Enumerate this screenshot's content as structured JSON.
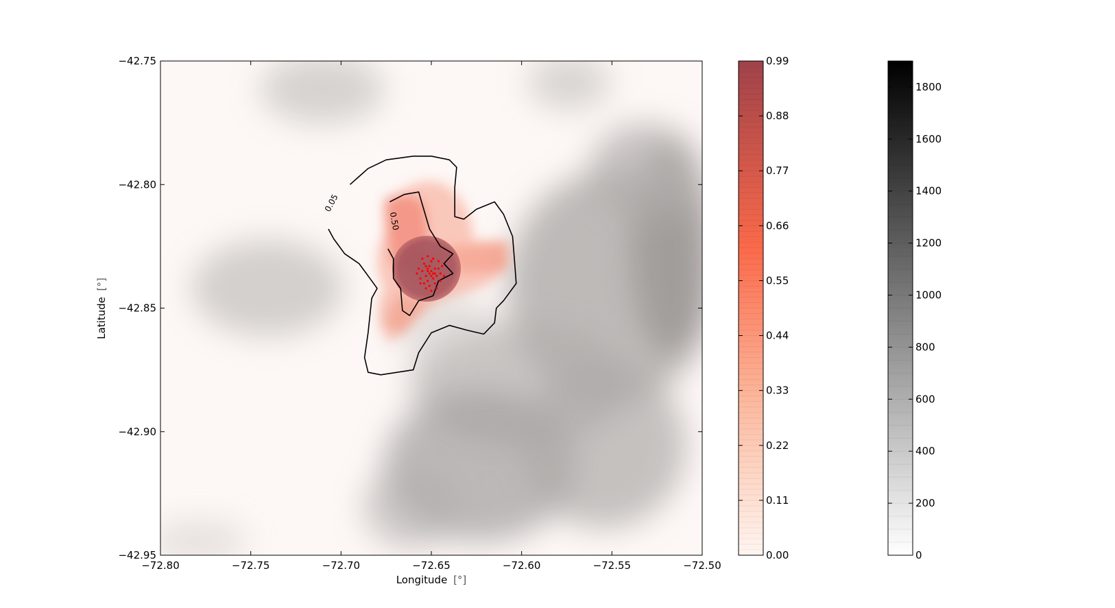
{
  "chart_data": {
    "type": "heatmap",
    "title": "",
    "xlabel": "Longitude",
    "xlabel_unit": "[°]",
    "ylabel": "Latitude",
    "ylabel_unit": "[°]",
    "xlim": [
      -72.8,
      -72.5
    ],
    "ylim": [
      -42.95,
      -42.75
    ],
    "x_ticks": [
      {
        "value": -72.8,
        "label": "−72.80"
      },
      {
        "value": -72.75,
        "label": "−72.75"
      },
      {
        "value": -72.7,
        "label": "−72.70"
      },
      {
        "value": -72.65,
        "label": "−72.65"
      },
      {
        "value": -72.6,
        "label": "−72.60"
      },
      {
        "value": -72.55,
        "label": "−72.55"
      },
      {
        "value": -72.5,
        "label": "−72.50"
      }
    ],
    "y_ticks": [
      {
        "value": -42.75,
        "label": "−42.75"
      },
      {
        "value": -42.8,
        "label": "−42.80"
      },
      {
        "value": -42.85,
        "label": "−42.85"
      },
      {
        "value": -42.9,
        "label": "−42.90"
      },
      {
        "value": -42.95,
        "label": "−42.95"
      }
    ],
    "probability_colorbar": {
      "range": [
        0,
        0.99
      ],
      "colormap": [
        "#fff5f0",
        "#fcbba1",
        "#fb6a4a",
        "#a0424a"
      ],
      "ticks": [
        {
          "value": 0.0,
          "label": "0.00"
        },
        {
          "value": 0.11,
          "label": "0.11"
        },
        {
          "value": 0.22,
          "label": "0.22"
        },
        {
          "value": 0.33,
          "label": "0.33"
        },
        {
          "value": 0.44,
          "label": "0.44"
        },
        {
          "value": 0.55,
          "label": "0.55"
        },
        {
          "value": 0.66,
          "label": "0.66"
        },
        {
          "value": 0.77,
          "label": "0.77"
        },
        {
          "value": 0.88,
          "label": "0.88"
        },
        {
          "value": 0.99,
          "label": "0.99"
        }
      ]
    },
    "elevation_colorbar": {
      "range": [
        0,
        1900
      ],
      "colormap": [
        "#ffffff",
        "#000000"
      ],
      "ticks": [
        {
          "value": 0,
          "label": "0"
        },
        {
          "value": 200,
          "label": "200"
        },
        {
          "value": 400,
          "label": "400"
        },
        {
          "value": 600,
          "label": "600"
        },
        {
          "value": 800,
          "label": "800"
        },
        {
          "value": 1000,
          "label": "1000"
        },
        {
          "value": 1200,
          "label": "1200"
        },
        {
          "value": 1400,
          "label": "1400"
        },
        {
          "value": 1600,
          "label": "1600"
        },
        {
          "value": 1800,
          "label": "1800"
        }
      ]
    },
    "contours": [
      {
        "level_label": "0.05",
        "points": [
          [
            -72.695,
            -42.8
          ],
          [
            -72.685,
            -42.7935
          ],
          [
            -72.675,
            -42.79
          ],
          [
            -72.66,
            -42.7885
          ],
          [
            -72.65,
            -42.7885
          ],
          [
            -72.64,
            -42.79
          ],
          [
            -72.636,
            -42.793
          ],
          [
            -72.637,
            -42.801
          ],
          [
            -72.637,
            -42.808
          ],
          [
            -72.637,
            -42.813
          ],
          [
            -72.632,
            -42.814
          ],
          [
            -72.625,
            -42.81
          ],
          [
            -72.615,
            -42.807
          ],
          [
            -72.61,
            -42.812
          ],
          [
            -72.605,
            -42.821
          ],
          [
            -72.604,
            -42.83
          ],
          [
            -72.603,
            -42.84
          ],
          [
            -72.61,
            -42.847
          ],
          [
            -72.614,
            -42.85
          ],
          [
            -72.615,
            -42.856
          ],
          [
            -72.621,
            -42.8605
          ],
          [
            -72.63,
            -42.859
          ],
          [
            -72.64,
            -42.857
          ],
          [
            -72.65,
            -42.86
          ],
          [
            -72.657,
            -42.868
          ],
          [
            -72.66,
            -42.875
          ],
          [
            -72.669,
            -42.876
          ],
          [
            -72.678,
            -42.877
          ],
          [
            -72.685,
            -42.876
          ],
          [
            -72.687,
            -42.87
          ],
          [
            -72.685,
            -42.86
          ],
          [
            -72.683,
            -42.846
          ],
          [
            -72.68,
            -42.842
          ],
          [
            -72.684,
            -42.838
          ],
          [
            -72.69,
            -42.832
          ],
          [
            -72.698,
            -42.828
          ],
          [
            -72.704,
            -42.822
          ],
          [
            -72.707,
            -42.818
          ]
        ],
        "label_at": [
          -72.704,
          -42.808
        ]
      },
      {
        "level_label": "0.50",
        "points": [
          [
            -72.673,
            -42.807
          ],
          [
            -72.665,
            -42.804
          ],
          [
            -72.657,
            -42.803
          ],
          [
            -72.655,
            -42.808
          ],
          [
            -72.651,
            -42.818
          ],
          [
            -72.645,
            -42.825
          ],
          [
            -72.638,
            -42.828
          ],
          [
            -72.643,
            -42.832
          ],
          [
            -72.638,
            -42.836
          ],
          [
            -72.646,
            -42.839
          ],
          [
            -72.649,
            -42.845
          ],
          [
            -72.657,
            -42.847
          ],
          [
            -72.662,
            -42.853
          ],
          [
            -72.666,
            -42.851
          ],
          [
            -72.667,
            -42.842
          ],
          [
            -72.671,
            -42.838
          ],
          [
            -72.671,
            -42.83
          ],
          [
            -72.674,
            -42.826
          ]
        ],
        "label_at": [
          -72.672,
          -42.815
        ]
      }
    ],
    "scatter": {
      "color": "#ff0000",
      "center": [
        -72.651,
        -42.8355
      ],
      "points": [
        [
          -72.65,
          -42.835
        ],
        [
          -72.652,
          -42.834
        ],
        [
          -72.648,
          -42.836
        ],
        [
          -72.653,
          -42.837
        ],
        [
          -72.651,
          -42.833
        ],
        [
          -72.649,
          -42.838
        ],
        [
          -72.655,
          -42.835
        ],
        [
          -72.646,
          -42.834
        ],
        [
          -72.65,
          -42.831
        ],
        [
          -72.652,
          -42.839
        ],
        [
          -72.654,
          -42.832
        ],
        [
          -72.647,
          -42.837
        ],
        [
          -72.656,
          -42.838
        ],
        [
          -72.645,
          -42.836
        ],
        [
          -72.651,
          -42.841
        ],
        [
          -72.649,
          -42.83
        ],
        [
          -72.653,
          -42.842
        ],
        [
          -72.657,
          -42.834
        ],
        [
          -72.644,
          -42.833
        ],
        [
          -72.648,
          -42.84
        ],
        [
          -72.655,
          -42.83
        ],
        [
          -72.65,
          -42.843
        ],
        [
          -72.646,
          -42.831
        ],
        [
          -72.658,
          -42.836
        ],
        [
          -72.643,
          -42.837
        ],
        [
          -72.652,
          -42.829
        ],
        [
          -72.654,
          -42.84
        ],
        [
          -72.647,
          -42.842
        ],
        [
          -72.649,
          -42.836
        ],
        [
          -72.651,
          -42.836
        ],
        [
          -72.65,
          -42.837
        ],
        [
          -72.652,
          -42.835
        ],
        [
          -72.648,
          -42.834
        ],
        [
          -72.653,
          -42.833
        ],
        [
          -72.656,
          -42.84
        ],
        [
          -72.645,
          -42.839
        ]
      ]
    }
  }
}
